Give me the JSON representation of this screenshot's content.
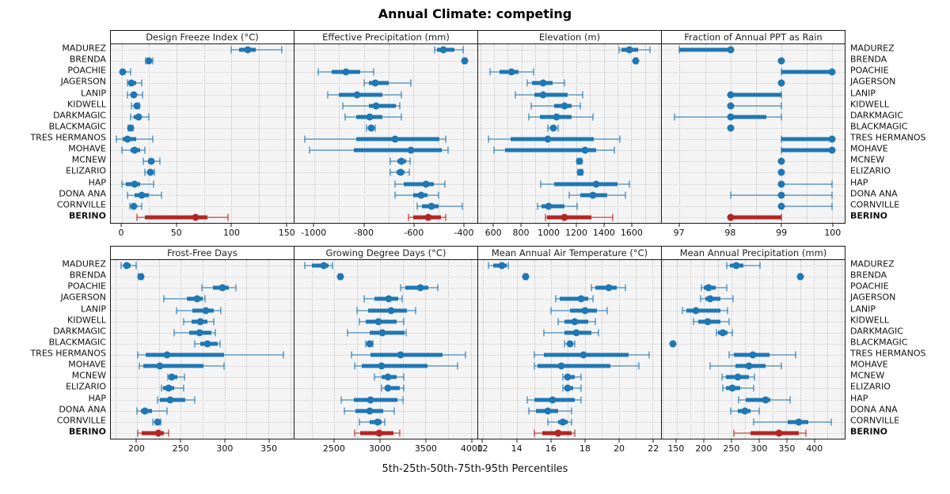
{
  "title": "Annual Climate: competing",
  "footer": "5th-25th-50th-75th-95th Percentiles",
  "highlight_site": "BERINO",
  "colors": {
    "series": "#1f77b4",
    "highlight": "#b42523",
    "panel_bg": "#f4f4f4",
    "grid": "#c2c2c2",
    "frame": "#1a1a1a"
  },
  "sites": [
    "MADUREZ",
    "BRENDA",
    "POACHIE",
    "JAGERSON",
    "LANIP",
    "KIDWELL",
    "DARKMAGIC",
    "BLACKMAGIC",
    "TRES HERMANOS",
    "MOHAVE",
    "MCNEW",
    "ELIZARIO",
    "HAP",
    "DONA ANA",
    "CORNVILLE",
    "BERINO"
  ],
  "chart_data": {
    "type": "dotplot-percentiles",
    "percentile_labels": [
      "5th",
      "25th",
      "50th",
      "75th",
      "95th"
    ],
    "layout": "2 rows x 4 columns trellis, shared site rows, BERINO highlighted",
    "panels": [
      {
        "title": "Design Freeze Index (°C)",
        "group": "top",
        "xlim": [
          -10,
          157
        ],
        "ticks": [
          0,
          50,
          100,
          150
        ],
        "values": [
          [
            100,
            107,
            115,
            122,
            146
          ],
          [
            22,
            24,
            25,
            26,
            28
          ],
          [
            0,
            0,
            1,
            3,
            8
          ],
          [
            5,
            7,
            9,
            13,
            18
          ],
          [
            5,
            8,
            11,
            14,
            19
          ],
          [
            9,
            11,
            14,
            15,
            16
          ],
          [
            8,
            11,
            15,
            18,
            25
          ],
          [
            6,
            7,
            8,
            9,
            10
          ],
          [
            -5,
            1,
            5,
            13,
            28
          ],
          [
            0,
            8,
            12,
            17,
            21
          ],
          [
            20,
            24,
            27,
            30,
            35
          ],
          [
            21,
            24,
            26,
            28,
            30
          ],
          [
            0,
            4,
            12,
            17,
            29
          ],
          [
            5,
            12,
            18,
            25,
            36
          ],
          [
            7,
            9,
            11,
            13,
            18
          ],
          [
            14,
            21,
            67,
            78,
            97
          ]
        ]
      },
      {
        "title": "Effective Precipitation (mm)",
        "group": "top",
        "xlim": [
          -1080,
          -343
        ],
        "ticks": [
          -1000,
          -800,
          -600,
          -400
        ],
        "values": [
          [
            -515,
            -505,
            -480,
            -435,
            -400
          ],
          [
            -400,
            -398,
            -395,
            -392,
            -389
          ],
          [
            -985,
            -930,
            -872,
            -815,
            -760
          ],
          [
            -800,
            -780,
            -753,
            -700,
            -610
          ],
          [
            -945,
            -900,
            -829,
            -726,
            -650
          ],
          [
            -885,
            -780,
            -750,
            -670,
            -655
          ],
          [
            -875,
            -830,
            -776,
            -726,
            -648
          ],
          [
            -790,
            -780,
            -772,
            -762,
            -753
          ],
          [
            -1040,
            -830,
            -675,
            -495,
            -470
          ],
          [
            -1020,
            -840,
            -610,
            -485,
            -460
          ],
          [
            -695,
            -665,
            -648,
            -630,
            -615
          ],
          [
            -695,
            -670,
            -652,
            -635,
            -618
          ],
          [
            -675,
            -640,
            -550,
            -520,
            -475
          ],
          [
            -675,
            -600,
            -570,
            -545,
            -500
          ],
          [
            -585,
            -565,
            -527,
            -500,
            -405
          ],
          [
            -620,
            -600,
            -540,
            -490,
            -470
          ]
        ]
      },
      {
        "title": "Elevation (m)",
        "group": "top",
        "xlim": [
          485,
          1818
        ],
        "ticks": [
          600,
          800,
          1000,
          1200,
          1400,
          1600
        ],
        "values": [
          [
            1515,
            1530,
            1590,
            1650,
            1735
          ],
          [
            1625,
            1630,
            1635,
            1640,
            1645
          ],
          [
            570,
            640,
            730,
            780,
            890
          ],
          [
            845,
            880,
            958,
            1030,
            1115
          ],
          [
            755,
            895,
            958,
            1135,
            1245
          ],
          [
            870,
            1040,
            1115,
            1165,
            1230
          ],
          [
            855,
            935,
            1055,
            1165,
            1320
          ],
          [
            995,
            1020,
            1035,
            1050,
            1070
          ],
          [
            560,
            720,
            990,
            1330,
            1520
          ],
          [
            600,
            680,
            1265,
            1345,
            1475
          ],
          [
            1205,
            1215,
            1222,
            1230,
            1242
          ],
          [
            1210,
            1220,
            1228,
            1236,
            1248
          ],
          [
            940,
            1040,
            1345,
            1500,
            1590
          ],
          [
            1150,
            1230,
            1320,
            1425,
            1560
          ],
          [
            915,
            945,
            1000,
            1115,
            1205
          ],
          [
            975,
            985,
            1115,
            1310,
            1465
          ]
        ]
      },
      {
        "title": "Fraction of Annual PPT as Rain",
        "group": "top",
        "xlim": [
          96.65,
          100.25
        ],
        "ticks": [
          97,
          98,
          99,
          100
        ],
        "values": [
          [
            97,
            97,
            98,
            98,
            98
          ],
          [
            99,
            99,
            99,
            99,
            99
          ],
          [
            99,
            99,
            100,
            100,
            100
          ],
          [
            99,
            99,
            99,
            99,
            99
          ],
          [
            98,
            98,
            98,
            99,
            99
          ],
          [
            98,
            98,
            98,
            98,
            99
          ],
          [
            96.9,
            98,
            98,
            98.7,
            99
          ],
          [
            98,
            98,
            98,
            98,
            98
          ],
          [
            99,
            99,
            100,
            100,
            100
          ],
          [
            99,
            99,
            100,
            100,
            100
          ],
          [
            99,
            99,
            99,
            99,
            99
          ],
          [
            99,
            99,
            99,
            99,
            99
          ],
          [
            99,
            99,
            99,
            99,
            100
          ],
          [
            98,
            99,
            99,
            99,
            100
          ],
          [
            99,
            99,
            99,
            99,
            100
          ],
          [
            98,
            98,
            98,
            99,
            99
          ]
        ]
      },
      {
        "title": "Frost-Free Days",
        "group": "bottom",
        "xlim": [
          170,
          379
        ],
        "ticks": [
          200,
          250,
          300,
          350
        ],
        "values": [
          [
            182,
            185,
            188,
            193,
            199
          ],
          [
            202,
            203,
            204,
            205,
            206
          ],
          [
            274,
            287,
            298,
            305,
            313
          ],
          [
            231,
            257,
            269,
            275,
            278
          ],
          [
            245,
            263,
            279,
            288,
            296
          ],
          [
            253,
            262,
            272,
            280,
            288
          ],
          [
            242,
            260,
            271,
            285,
            289
          ],
          [
            266,
            272,
            280,
            292,
            295
          ],
          [
            201,
            210,
            234,
            299,
            367
          ],
          [
            203,
            207,
            226,
            276,
            299
          ],
          [
            235,
            236,
            240,
            246,
            254
          ],
          [
            228,
            230,
            236,
            242,
            253
          ],
          [
            223,
            226,
            238,
            255,
            266
          ],
          [
            200,
            204,
            209,
            217,
            234
          ],
          [
            218,
            221,
            223,
            225,
            227
          ],
          [
            201,
            205,
            224,
            231,
            236
          ]
        ]
      },
      {
        "title": "Growing Degree Days (°C)",
        "group": "bottom",
        "xlim": [
          2061,
          4070
        ],
        "ticks": [
          2500,
          3000,
          3500,
          4000
        ],
        "values": [
          [
            2175,
            2250,
            2380,
            2435,
            2480
          ],
          [
            2550,
            2560,
            2565,
            2572,
            2580
          ],
          [
            3230,
            3275,
            3440,
            3535,
            3635
          ],
          [
            2825,
            2940,
            3095,
            3200,
            3240
          ],
          [
            2745,
            2870,
            3125,
            3300,
            3395
          ],
          [
            2775,
            2840,
            2980,
            3185,
            3260
          ],
          [
            2640,
            2885,
            3030,
            3270,
            3290
          ],
          [
            2840,
            2860,
            2885,
            2905,
            2925
          ],
          [
            2690,
            2900,
            3230,
            3690,
            3940
          ],
          [
            2725,
            2800,
            3015,
            3520,
            3855
          ],
          [
            2940,
            3015,
            3085,
            3180,
            3260
          ],
          [
            3015,
            3055,
            3090,
            3215,
            3260
          ],
          [
            2575,
            2715,
            2900,
            3190,
            3250
          ],
          [
            2605,
            2730,
            2890,
            3035,
            3160
          ],
          [
            2775,
            2890,
            2970,
            3015,
            3055
          ],
          [
            2720,
            2780,
            2995,
            3145,
            3215
          ]
        ]
      },
      {
        "title": "Mean Annual Air Temperature (°C)",
        "group": "bottom",
        "xlim": [
          11.7,
          22.5
        ],
        "ticks": [
          12,
          14,
          16,
          18,
          20,
          22
        ],
        "values": [
          [
            12.3,
            12.6,
            13.1,
            13.4,
            13.5
          ],
          [
            14.4,
            14.4,
            14.5,
            14.5,
            14.6
          ],
          [
            18.4,
            18.6,
            19.4,
            19.9,
            20.4
          ],
          [
            16.3,
            16.5,
            17.8,
            18.2,
            18.5
          ],
          [
            16.0,
            17.1,
            18.0,
            18.7,
            19.3
          ],
          [
            16.4,
            16.8,
            17.4,
            18.2,
            18.6
          ],
          [
            15.6,
            16.8,
            17.5,
            18.4,
            18.8
          ],
          [
            16.8,
            17.0,
            17.1,
            17.3,
            17.4
          ],
          [
            15.0,
            15.6,
            17.9,
            20.6,
            21.8
          ],
          [
            15.0,
            15.2,
            16.6,
            19.5,
            21.2
          ],
          [
            16.7,
            16.8,
            17.0,
            17.4,
            17.8
          ],
          [
            16.7,
            16.9,
            17.0,
            17.3,
            17.8
          ],
          [
            14.6,
            15.0,
            16.1,
            17.4,
            17.8
          ],
          [
            14.7,
            15.1,
            15.8,
            16.4,
            17.2
          ],
          [
            15.8,
            16.4,
            16.7,
            17.0,
            17.2
          ],
          [
            15.0,
            15.5,
            16.4,
            17.2,
            17.4
          ]
        ]
      },
      {
        "title": "Mean Annual Precipitation (mm)",
        "group": "bottom",
        "xlim": [
          123,
          456
        ],
        "ticks": [
          150,
          200,
          250,
          300,
          350,
          400
        ],
        "values": [
          [
            241,
            247,
            258,
            271,
            302
          ],
          [
            373,
            374,
            375,
            376,
            377
          ],
          [
            195,
            199,
            208,
            221,
            241
          ],
          [
            194,
            202,
            211,
            230,
            253
          ],
          [
            161,
            168,
            185,
            230,
            242
          ],
          [
            180,
            190,
            206,
            230,
            245
          ],
          [
            222,
            225,
            234,
            243,
            251
          ],
          [
            142,
            143,
            143,
            144,
            145
          ],
          [
            246,
            254,
            289,
            319,
            367
          ],
          [
            211,
            257,
            281,
            312,
            340
          ],
          [
            232,
            240,
            262,
            281,
            292
          ],
          [
            234,
            240,
            252,
            266,
            290
          ],
          [
            263,
            276,
            312,
            320,
            357
          ],
          [
            248,
            261,
            274,
            285,
            301
          ],
          [
            290,
            352,
            372,
            390,
            431
          ],
          [
            254,
            285,
            337,
            372,
            385
          ]
        ]
      }
    ]
  }
}
